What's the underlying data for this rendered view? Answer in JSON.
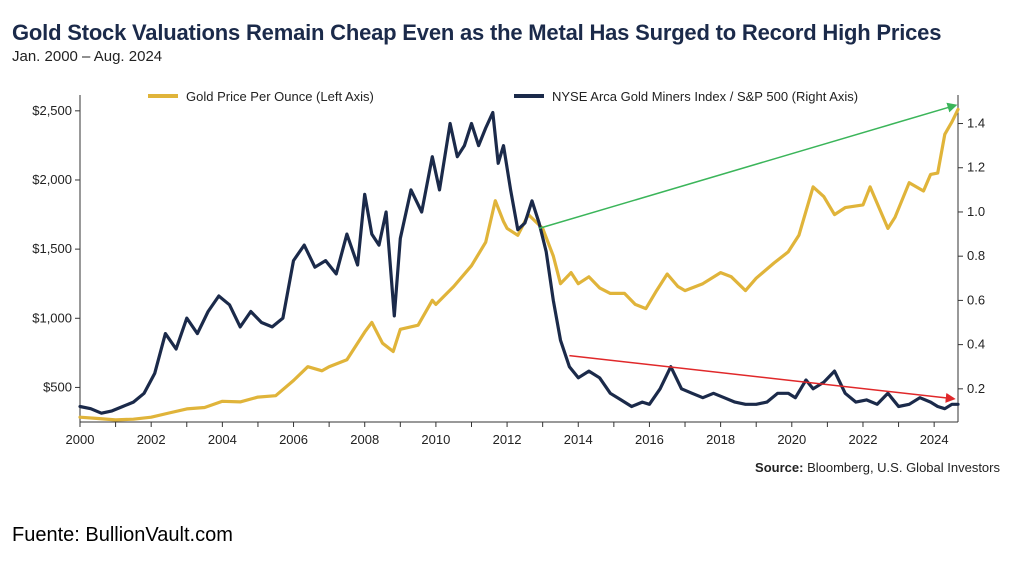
{
  "chart_data": {
    "type": "line",
    "title": "Gold Stock Valuations Remain Cheap Even as the Metal Has Surged to Record High Prices",
    "subtitle": "Jan. 2000 – Aug. 2024",
    "source_label": "Source:",
    "source_text": "Bloomberg, U.S. Global Investors",
    "x_range": [
      2000,
      2024.67
    ],
    "x_ticks": [
      2000,
      2002,
      2004,
      2006,
      2008,
      2010,
      2012,
      2014,
      2016,
      2018,
      2020,
      2022,
      2024
    ],
    "y_left": {
      "range": [
        250,
        2600
      ],
      "ticks": [
        500,
        1000,
        1500,
        2000,
        2500
      ],
      "tick_labels": [
        "$500",
        "$1,000",
        "$1,500",
        "$2,000",
        "$2,500"
      ]
    },
    "y_right": {
      "range": [
        0.05,
        1.52
      ],
      "ticks": [
        0.2,
        0.4,
        0.6,
        0.8,
        1.0,
        1.2,
        1.4
      ],
      "tick_labels": [
        "0.2",
        "0.4",
        "0.6",
        "0.8",
        "1.0",
        "1.2",
        "1.4"
      ]
    },
    "series": [
      {
        "name": "Gold Price Per Ounce (Left Axis)",
        "axis": "left",
        "color": "#e0b43a",
        "x": [
          2000.0,
          2000.5,
          2001.0,
          2001.5,
          2002.0,
          2002.5,
          2003.0,
          2003.5,
          2004.0,
          2004.5,
          2005.0,
          2005.5,
          2006.0,
          2006.4,
          2006.8,
          2007.0,
          2007.5,
          2008.0,
          2008.2,
          2008.5,
          2008.8,
          2009.0,
          2009.5,
          2009.9,
          2010.0,
          2010.5,
          2011.0,
          2011.4,
          2011.67,
          2011.9,
          2012.0,
          2012.3,
          2012.6,
          2012.8,
          2013.0,
          2013.3,
          2013.5,
          2013.8,
          2014.0,
          2014.3,
          2014.6,
          2014.9,
          2015.3,
          2015.6,
          2015.9,
          2016.2,
          2016.5,
          2016.8,
          2017.0,
          2017.5,
          2018.0,
          2018.3,
          2018.7,
          2019.0,
          2019.5,
          2019.9,
          2020.2,
          2020.6,
          2020.9,
          2021.2,
          2021.5,
          2022.0,
          2022.2,
          2022.7,
          2022.9,
          2023.3,
          2023.7,
          2023.9,
          2024.1,
          2024.3,
          2024.5,
          2024.67
        ],
        "values": [
          285,
          275,
          265,
          270,
          285,
          315,
          345,
          355,
          400,
          395,
          430,
          440,
          550,
          650,
          620,
          650,
          700,
          900,
          970,
          820,
          760,
          920,
          950,
          1130,
          1100,
          1230,
          1380,
          1550,
          1850,
          1700,
          1650,
          1600,
          1750,
          1700,
          1650,
          1450,
          1250,
          1330,
          1250,
          1300,
          1220,
          1180,
          1180,
          1100,
          1070,
          1200,
          1320,
          1230,
          1200,
          1250,
          1330,
          1300,
          1200,
          1290,
          1400,
          1480,
          1600,
          1950,
          1880,
          1750,
          1800,
          1820,
          1950,
          1650,
          1730,
          1980,
          1920,
          2040,
          2050,
          2330,
          2420,
          2510
        ]
      },
      {
        "name": "NYSE Arca Gold Miners Index / S&P 500 (Right Axis)",
        "axis": "right",
        "color": "#1b2a4a",
        "x": [
          2000.0,
          2000.3,
          2000.6,
          2000.9,
          2001.2,
          2001.5,
          2001.8,
          2002.1,
          2002.4,
          2002.7,
          2003.0,
          2003.3,
          2003.6,
          2003.9,
          2004.2,
          2004.5,
          2004.8,
          2005.1,
          2005.4,
          2005.7,
          2006.0,
          2006.3,
          2006.6,
          2006.9,
          2007.2,
          2007.5,
          2007.8,
          2008.0,
          2008.2,
          2008.4,
          2008.6,
          2008.83,
          2009.0,
          2009.3,
          2009.6,
          2009.9,
          2010.1,
          2010.4,
          2010.6,
          2010.8,
          2011.0,
          2011.2,
          2011.4,
          2011.6,
          2011.75,
          2011.9,
          2012.1,
          2012.3,
          2012.5,
          2012.7,
          2012.9,
          2013.1,
          2013.3,
          2013.5,
          2013.75,
          2014.0,
          2014.3,
          2014.6,
          2014.9,
          2015.2,
          2015.5,
          2015.8,
          2016.0,
          2016.3,
          2016.6,
          2016.9,
          2017.2,
          2017.5,
          2017.8,
          2018.1,
          2018.4,
          2018.7,
          2019.0,
          2019.3,
          2019.6,
          2019.9,
          2020.1,
          2020.4,
          2020.6,
          2020.9,
          2021.2,
          2021.5,
          2021.8,
          2022.1,
          2022.4,
          2022.7,
          2023.0,
          2023.3,
          2023.6,
          2023.9,
          2024.1,
          2024.3,
          2024.5,
          2024.67
        ],
        "values": [
          0.12,
          0.11,
          0.09,
          0.1,
          0.12,
          0.14,
          0.18,
          0.27,
          0.45,
          0.38,
          0.52,
          0.45,
          0.55,
          0.62,
          0.58,
          0.48,
          0.55,
          0.5,
          0.48,
          0.52,
          0.78,
          0.85,
          0.75,
          0.78,
          0.72,
          0.9,
          0.76,
          1.08,
          0.9,
          0.85,
          1.0,
          0.53,
          0.88,
          1.1,
          1.0,
          1.25,
          1.1,
          1.4,
          1.25,
          1.3,
          1.4,
          1.3,
          1.38,
          1.45,
          1.22,
          1.3,
          1.1,
          0.92,
          0.95,
          1.05,
          0.95,
          0.82,
          0.6,
          0.42,
          0.3,
          0.25,
          0.28,
          0.25,
          0.18,
          0.15,
          0.12,
          0.14,
          0.13,
          0.2,
          0.3,
          0.2,
          0.18,
          0.16,
          0.18,
          0.16,
          0.14,
          0.13,
          0.13,
          0.14,
          0.18,
          0.18,
          0.16,
          0.24,
          0.2,
          0.23,
          0.28,
          0.18,
          0.14,
          0.15,
          0.13,
          0.18,
          0.12,
          0.13,
          0.16,
          0.14,
          0.12,
          0.11,
          0.13,
          0.13
        ]
      }
    ],
    "annotations": [
      {
        "type": "arrow",
        "color": "#3bb55a",
        "from": [
          2012.9,
          1650
        ],
        "to": [
          2024.6,
          2540
        ],
        "axis": "left",
        "label": ""
      },
      {
        "type": "arrow",
        "color": "#e0282a",
        "from": [
          2013.75,
          0.35
        ],
        "to": [
          2024.55,
          0.155
        ],
        "axis": "right",
        "label": ""
      }
    ],
    "legend_position": "top"
  },
  "caption": "Fuente: BullionVault.com"
}
